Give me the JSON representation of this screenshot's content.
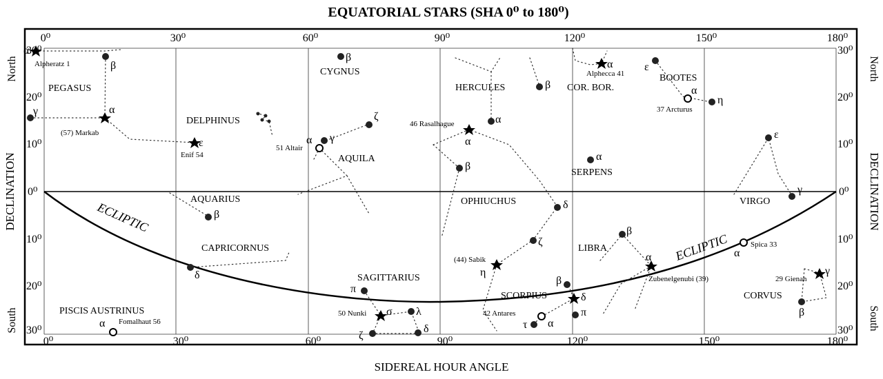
{
  "chart": {
    "title": "EQUATORIAL STARS (SHA 0⁰ to 180⁰)",
    "xlabel": "SIDEREAL HOUR ANGLE",
    "ylabel": "DECLINATION",
    "north_label": "North",
    "south_label": "South",
    "ecliptic_label": "ECLIPTIC"
  },
  "axes": {
    "sha_ticks": [
      "0⁰",
      "30⁰",
      "60⁰",
      "90⁰",
      "120⁰",
      "150⁰",
      "180⁰"
    ],
    "dec_ticks_north": [
      "30⁰",
      "20⁰",
      "10⁰",
      "0⁰"
    ],
    "dec_ticks_south": [
      "10⁰",
      "20⁰",
      "30⁰"
    ]
  },
  "constellations": [
    "PEGASUS",
    "CYGNUS",
    "HERCULES",
    "COR. BOR.",
    "BOOTES",
    "DELPHINUS",
    "AQUILA",
    "SERPENS",
    "AQUARIUS",
    "OPHIUCHUS",
    "VIRGO",
    "CAPRICORNUS",
    "LIBRA",
    "SAGITTARIUS",
    "SCORPIUS",
    "CORVUS",
    "PISCIS AUSTRINUS"
  ],
  "named_stars": [
    {
      "name": "Alpheratz 1",
      "sha": 358,
      "dec": 29
    },
    {
      "name": "(57) Markab",
      "sha": 14,
      "dec": 15
    },
    {
      "name": "Enif 54",
      "sha": 34,
      "dec": 10
    },
    {
      "name": "51 Altair",
      "sha": 62,
      "dec": 9
    },
    {
      "name": "46 Rasalhague",
      "sha": 96,
      "dec": 13
    },
    {
      "name": "Alphecca 41",
      "sha": 126,
      "dec": 27
    },
    {
      "name": "37 Arcturus",
      "sha": 146,
      "dec": 19
    },
    {
      "name": "Spica 33",
      "sha": 159,
      "dec": -11
    },
    {
      "name": "29 Gienah",
      "sha": 176,
      "dec": -17
    },
    {
      "name": "Zubenelgenubi (39)",
      "sha": 137,
      "dec": -16
    },
    {
      "name": "(44) Sabik",
      "sha": 102,
      "dec": -16
    },
    {
      "name": "42 Antares",
      "sha": 113,
      "dec": -26
    },
    {
      "name": "50 Nunki",
      "sha": 76,
      "dec": -26
    },
    {
      "name": "Fomalhaut 56",
      "sha": 16,
      "dec": -30
    }
  ],
  "greek": {
    "alpha": "α",
    "beta": "β",
    "gamma": "γ",
    "delta": "δ",
    "epsilon": "ε",
    "zeta": "ζ",
    "eta": "η",
    "lambda": "λ",
    "pi": "π",
    "sigma": "σ",
    "tau": "τ"
  }
}
